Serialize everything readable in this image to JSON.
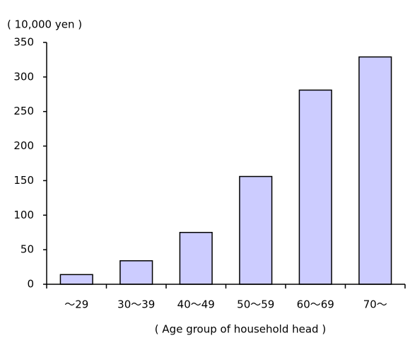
{
  "chart_data": {
    "type": "bar",
    "y_label": "( 10,000 yen )",
    "x_label": "( Age group of household head )",
    "categories": [
      "～29",
      "30～39",
      "40～49",
      "50～59",
      "60～69",
      "70～"
    ],
    "values": [
      14,
      34,
      75,
      156,
      281,
      329
    ],
    "color": "#ccccff",
    "ylim": [
      0,
      350
    ],
    "yticks": [
      0,
      50,
      100,
      150,
      200,
      250,
      300,
      350
    ],
    "grid": false
  }
}
